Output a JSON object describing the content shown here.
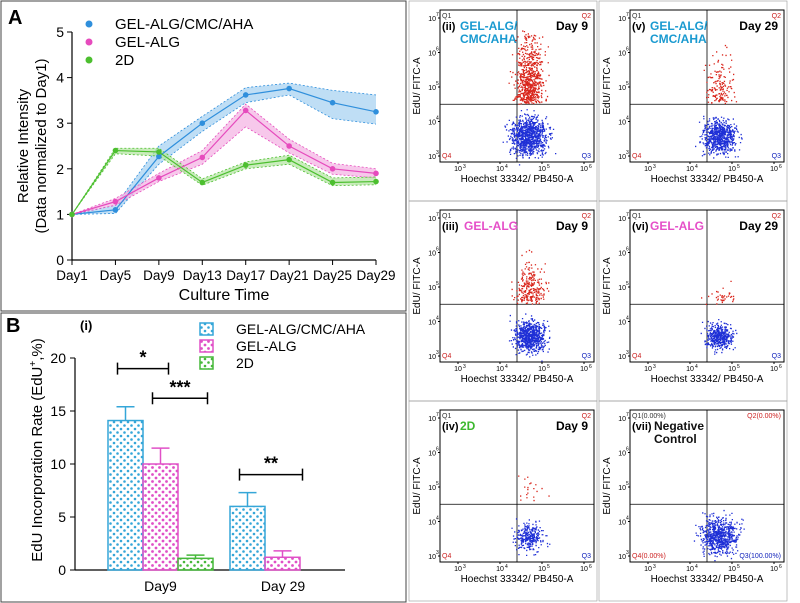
{
  "chart_data": [
    {
      "type": "line",
      "panel_label": "A",
      "title": "",
      "xlabel": "Culture Time",
      "ylabel_line1": "Relative Intensity",
      "ylabel_line2": "(Data normalized to Day1)",
      "categories": [
        "Day1",
        "Day5",
        "Day9",
        "Day13",
        "Day17",
        "Day21",
        "Day25",
        "Day29"
      ],
      "ylim": [
        0,
        5
      ],
      "yticks": [
        "0",
        "1",
        "2",
        "3",
        "4",
        "5"
      ],
      "legend_position": "top-left",
      "series": [
        {
          "name": "GEL-ALG/CMC/AHA",
          "color": "#2f8fdc",
          "fill": "#a9d3f2",
          "values": [
            1.0,
            1.1,
            2.27,
            3.0,
            3.62,
            3.76,
            3.45,
            3.25
          ],
          "upper": [
            1.0,
            1.2,
            2.5,
            3.15,
            3.78,
            3.88,
            3.72,
            3.62
          ],
          "lower": [
            1.0,
            1.02,
            2.1,
            2.82,
            3.45,
            3.62,
            3.1,
            2.98
          ]
        },
        {
          "name": "GEL-ALG",
          "color": "#e64bbd",
          "fill": "#f4b6e4",
          "values": [
            1.0,
            1.28,
            1.8,
            2.25,
            3.28,
            2.5,
            2.0,
            1.9
          ],
          "upper": [
            1.0,
            1.35,
            1.9,
            2.4,
            3.42,
            2.65,
            2.12,
            2.0
          ],
          "lower": [
            1.0,
            1.2,
            1.72,
            2.1,
            2.92,
            2.35,
            1.88,
            1.8
          ]
        },
        {
          "name": "2D",
          "color": "#4cbf2f",
          "fill": "#b7e6a6",
          "values": [
            1.0,
            2.4,
            2.37,
            1.7,
            2.08,
            2.2,
            1.7,
            1.72
          ],
          "upper": [
            1.0,
            2.45,
            2.45,
            1.78,
            2.15,
            2.3,
            1.8,
            1.82
          ],
          "lower": [
            1.0,
            2.33,
            2.28,
            1.64,
            2.0,
            2.1,
            1.63,
            1.65
          ]
        }
      ]
    },
    {
      "type": "bar",
      "panel_label": "B",
      "subpanel": "(i)",
      "ylabel": "EdU Incorporation Rate (EdU",
      "ylabel_sup": "+",
      "ylabel_end": ",%)",
      "xlabel": "",
      "categories": [
        "Day9",
        "Day 29"
      ],
      "ylim": [
        0,
        20
      ],
      "yticks": [
        "0",
        "5",
        "10",
        "15",
        "20"
      ],
      "legend_position": "top-right",
      "series": [
        {
          "name": "GEL-ALG/CMC/AHA",
          "color": "#35a6d8",
          "values": [
            14.1,
            6.0
          ],
          "errors": [
            1.3,
            1.3
          ]
        },
        {
          "name": "GEL-ALG",
          "color": "#e050c7",
          "values": [
            10.0,
            1.2
          ],
          "errors": [
            1.5,
            0.6
          ]
        },
        {
          "name": "2D",
          "color": "#46b83a",
          "values": [
            1.1,
            null
          ],
          "errors": [
            0.3,
            null
          ]
        }
      ],
      "significance": [
        "*",
        "***",
        "**"
      ]
    },
    {
      "type": "scatter",
      "subtype": "flow-cytometry",
      "xlabel": "Hoechst 33342/ PB450-A",
      "ylabel": "EdU/ FITC-A",
      "yticks": [
        "10",
        "10",
        "10",
        "10",
        "10"
      ],
      "ytick_exps": [
        "3",
        "4",
        "5",
        "6",
        "7"
      ],
      "xticks": [
        "10",
        "10",
        "10",
        "10"
      ],
      "xtick_exps": [
        "3",
        "4",
        "5",
        "6"
      ],
      "quadrants": [
        "Q1",
        "Q2",
        "Q3",
        "Q4"
      ],
      "panels": [
        {
          "id": "ii",
          "label": "(ii)",
          "group_line1": "GEL-ALG/",
          "group_line2": "CMC/AHA",
          "group_color": "#1a9ad0",
          "day": "Day 9"
        },
        {
          "id": "v",
          "label": "(v)",
          "group_line1": "GEL-ALG/",
          "group_line2": "CMC/AHA",
          "group_color": "#1a9ad0",
          "day": "Day 29"
        },
        {
          "id": "iii",
          "label": "(iii)",
          "group_line1": "GEL-ALG",
          "group_line2": "",
          "group_color": "#e54fc8",
          "day": "Day 9"
        },
        {
          "id": "vi",
          "label": "(vi)",
          "group_line1": "GEL-ALG",
          "group_line2": "",
          "group_color": "#e54fc8",
          "day": "Day 29"
        },
        {
          "id": "iv",
          "label": "(iv)",
          "group_line1": "2D",
          "group_line2": "",
          "group_color": "#3cb82e",
          "day": "Day 9"
        },
        {
          "id": "vii",
          "label": "(vii)",
          "group_line1": "Negative",
          "group_line2": "Control",
          "group_color": "#111111",
          "day": "",
          "q1": "Q1(0.00%)",
          "q2": "Q2(0.00%)",
          "q3": "Q3(100.00%)",
          "q4": "Q4(0.00%)"
        }
      ]
    }
  ]
}
